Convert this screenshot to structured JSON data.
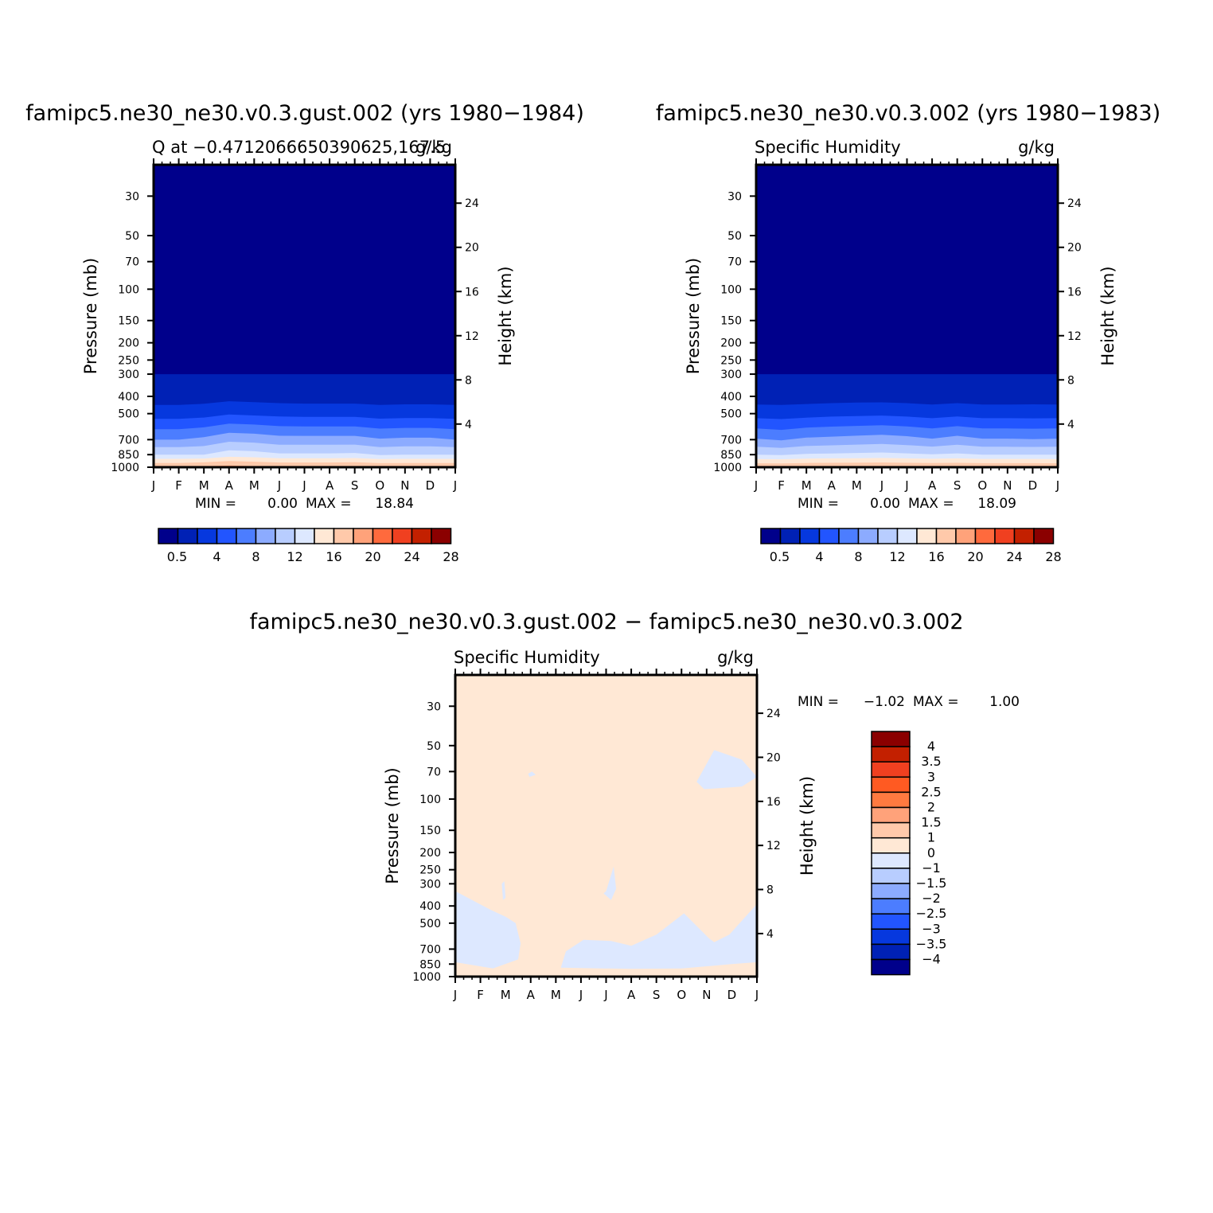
{
  "chart_data": [
    {
      "type": "heatmap",
      "title": "famipc5.ne30_ne30.v0.3.gust.002 (yrs 1980−1984)",
      "subtitle_left": "Q at −0.4712066650390625,167.5",
      "subtitle_right": "g/kg",
      "xlabel": "",
      "ylabel": "Pressure (mb)",
      "ylabel_right": "Height (km)",
      "x_ticks": [
        "J",
        "F",
        "M",
        "A",
        "M",
        "J",
        "J",
        "A",
        "S",
        "O",
        "N",
        "D",
        "J"
      ],
      "y_ticks": [
        30,
        50,
        70,
        100,
        150,
        200,
        250,
        300,
        400,
        500,
        700,
        850,
        1000
      ],
      "y_right_ticks": [
        24,
        20,
        16,
        12,
        8,
        4
      ],
      "ylim": [
        1000,
        20
      ],
      "y_scale": "log",
      "min_label": "MIN =",
      "min_value": "0.00",
      "max_label": "MAX =",
      "max_value": "18.84",
      "contour_levels": [
        0.5,
        2,
        4,
        6,
        8,
        10,
        12,
        14,
        16,
        18,
        20,
        22,
        24,
        26,
        28
      ],
      "colorbar_labels": [
        "0.5",
        "4",
        "8",
        "12",
        "16",
        "20",
        "24",
        "28"
      ],
      "colorbar_colors": [
        "#00008b",
        "#0021b5",
        "#0638de",
        "#2255ff",
        "#4c7dff",
        "#8cabff",
        "#b8cdff",
        "#dde8ff",
        "#ffe8d5",
        "#ffc9aa",
        "#ffa27a",
        "#ff6a3d",
        "#f04020",
        "#c32000",
        "#8b0000"
      ],
      "profile_pressure_mb": [
        1000,
        850,
        700,
        500,
        400,
        300
      ],
      "profile_q_by_month": [
        [
          18,
          12,
          8,
          3,
          1,
          0.5
        ],
        [
          18,
          12,
          8,
          3,
          1,
          0.5
        ],
        [
          18.5,
          12,
          8.5,
          3.2,
          1.1,
          0.5
        ],
        [
          18.84,
          13,
          9.5,
          3.8,
          1.3,
          0.6
        ],
        [
          18.5,
          12.8,
          9.3,
          3.6,
          1.2,
          0.55
        ],
        [
          18.2,
          12.3,
          8.8,
          3.4,
          1.1,
          0.5
        ],
        [
          18.2,
          12.3,
          8.8,
          3.3,
          1.05,
          0.5
        ],
        [
          18.2,
          12.3,
          8.8,
          3.3,
          1.05,
          0.5
        ],
        [
          18.3,
          12.4,
          8.8,
          3.3,
          1.05,
          0.5
        ],
        [
          18,
          11.8,
          8.2,
          3,
          1,
          0.5
        ],
        [
          18,
          12,
          8.4,
          3.1,
          1.05,
          0.5
        ],
        [
          18,
          12,
          8.4,
          3.1,
          1.05,
          0.5
        ],
        [
          18,
          12,
          8,
          3,
          1,
          0.5
        ]
      ]
    },
    {
      "type": "heatmap",
      "title": "famipc5.ne30_ne30.v0.3.002 (yrs 1980−1983)",
      "subtitle_left": "Specific Humidity",
      "subtitle_right": "g/kg",
      "xlabel": "",
      "ylabel": "Pressure (mb)",
      "ylabel_right": "Height (km)",
      "x_ticks": [
        "J",
        "F",
        "M",
        "A",
        "M",
        "J",
        "J",
        "A",
        "S",
        "O",
        "N",
        "D",
        "J"
      ],
      "y_ticks": [
        30,
        50,
        70,
        100,
        150,
        200,
        250,
        300,
        400,
        500,
        700,
        850,
        1000
      ],
      "y_right_ticks": [
        24,
        20,
        16,
        12,
        8,
        4
      ],
      "ylim": [
        1000,
        20
      ],
      "y_scale": "log",
      "min_label": "MIN =",
      "min_value": "0.00",
      "max_label": "MAX =",
      "max_value": "18.09",
      "contour_levels": [
        0.5,
        2,
        4,
        6,
        8,
        10,
        12,
        14,
        16,
        18,
        20,
        22,
        24,
        26,
        28
      ],
      "colorbar_labels": [
        "0.5",
        "4",
        "8",
        "12",
        "16",
        "20",
        "24",
        "28"
      ],
      "colorbar_colors": [
        "#00008b",
        "#0021b5",
        "#0638de",
        "#2255ff",
        "#4c7dff",
        "#8cabff",
        "#b8cdff",
        "#dde8ff",
        "#ffe8d5",
        "#ffc9aa",
        "#ffa27a",
        "#ff6a3d",
        "#f04020",
        "#c32000",
        "#8b0000"
      ],
      "profile_pressure_mb": [
        1000,
        850,
        700,
        500,
        400,
        300
      ],
      "profile_q_by_month": [
        [
          17.8,
          12,
          8.2,
          3.1,
          1,
          0.5
        ],
        [
          17.8,
          11.8,
          7.8,
          3,
          1,
          0.5
        ],
        [
          17.9,
          12.2,
          8.4,
          3.2,
          1.05,
          0.5
        ],
        [
          18,
          12.3,
          8.6,
          3.4,
          1.1,
          0.55
        ],
        [
          18,
          12.4,
          8.8,
          3.5,
          1.15,
          0.55
        ],
        [
          18.09,
          12.5,
          9,
          3.6,
          1.15,
          0.55
        ],
        [
          18,
          12.3,
          8.7,
          3.4,
          1.1,
          0.55
        ],
        [
          17.9,
          12.1,
          8.2,
          3.1,
          1,
          0.5
        ],
        [
          18,
          12.3,
          8.8,
          3.4,
          1.1,
          0.55
        ],
        [
          17.9,
          12,
          8.2,
          3.1,
          1,
          0.5
        ],
        [
          17.9,
          12,
          8.2,
          3.1,
          1,
          0.5
        ],
        [
          17.9,
          12,
          8.1,
          3.1,
          1.05,
          0.55
        ],
        [
          17.8,
          12,
          8.2,
          3.1,
          1,
          0.5
        ]
      ]
    },
    {
      "type": "heatmap",
      "title": "famipc5.ne30_ne30.v0.3.gust.002 − famipc5.ne30_ne30.v0.3.002",
      "subtitle_left": "Specific Humidity",
      "subtitle_right": "g/kg",
      "xlabel": "",
      "ylabel": "Pressure (mb)",
      "ylabel_right": "Height (km)",
      "x_ticks": [
        "J",
        "F",
        "M",
        "A",
        "M",
        "J",
        "J",
        "A",
        "S",
        "O",
        "N",
        "D",
        "J"
      ],
      "y_ticks": [
        30,
        50,
        70,
        100,
        150,
        200,
        250,
        300,
        400,
        500,
        700,
        850,
        1000
      ],
      "y_right_ticks": [
        24,
        20,
        16,
        12,
        8,
        4
      ],
      "ylim": [
        1000,
        20
      ],
      "y_scale": "log",
      "min_label": "MIN =",
      "min_value": "−1.02",
      "max_label": "MAX =",
      "max_value": "1.00",
      "contour_levels": [
        -4,
        -3.5,
        -3,
        -2.5,
        -2,
        -1.5,
        -1,
        0,
        1,
        1.5,
        2,
        2.5,
        3,
        3.5,
        4
      ],
      "colorbar_labels": [
        "4",
        "3.5",
        "3",
        "2.5",
        "2",
        "1.5",
        "1",
        "0",
        "−1",
        "−1.5",
        "−2",
        "−2.5",
        "−3",
        "−3.5",
        "−4"
      ],
      "colorbar_colors": [
        "#8b0000",
        "#c32000",
        "#f04020",
        "#ff5a22",
        "#ff7a40",
        "#ffa27a",
        "#ffc9aa",
        "#ffe8d5",
        "#dde8ff",
        "#b8cdff",
        "#8cabff",
        "#4c7dff",
        "#2255ff",
        "#0638de",
        "#0021b5",
        "#00008b"
      ],
      "background_value_range": [
        0,
        1
      ],
      "negative_regions_month_pressure_mb": [
        [
          [
            0,
            330
          ],
          [
            1.4,
            420
          ],
          [
            2,
            460
          ],
          [
            2.4,
            500
          ],
          [
            2.6,
            650
          ],
          [
            2.5,
            800
          ],
          [
            1.5,
            900
          ],
          [
            0,
            830
          ]
        ],
        [
          [
            4.4,
            720
          ],
          [
            5.1,
            620
          ],
          [
            6.2,
            630
          ],
          [
            7,
            670
          ],
          [
            8,
            580
          ],
          [
            9.1,
            440
          ],
          [
            10.1,
            610
          ],
          [
            10.3,
            640
          ],
          [
            10.9,
            580
          ],
          [
            12,
            390
          ],
          [
            12,
            830
          ],
          [
            11,
            850
          ],
          [
            9,
            900
          ],
          [
            7,
            905
          ],
          [
            5,
            895
          ],
          [
            4.2,
            890
          ]
        ],
        [
          [
            6,
            330
          ],
          [
            6.3,
            240
          ],
          [
            6.4,
            320
          ],
          [
            6.2,
            370
          ],
          [
            5.9,
            340
          ]
        ],
        [
          [
            9.6,
            80
          ],
          [
            10.3,
            53
          ],
          [
            11.4,
            60
          ],
          [
            12,
            75
          ],
          [
            11.4,
            85
          ],
          [
            9.9,
            88
          ]
        ],
        [
          [
            2.9,
            72
          ],
          [
            3.05,
            70
          ],
          [
            3.2,
            73
          ],
          [
            2.95,
            75
          ]
        ],
        [
          [
            1.85,
            300
          ],
          [
            1.95,
            290
          ],
          [
            2.0,
            360
          ],
          [
            1.9,
            370
          ]
        ]
      ]
    }
  ]
}
